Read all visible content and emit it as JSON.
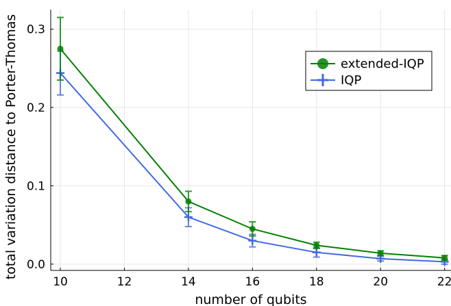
{
  "chart_data": {
    "type": "line",
    "xlabel": "number of qubits",
    "ylabel": "total variation distance to Porter-Thomas",
    "xlim": [
      9.7,
      22.2
    ],
    "ylim": [
      -0.008,
      0.325
    ],
    "xticks": [
      10,
      12,
      14,
      16,
      18,
      20,
      22
    ],
    "xtick_labels": [
      "10",
      "12",
      "14",
      "16",
      "18",
      "20",
      "22"
    ],
    "yticks": [
      0.0,
      0.1,
      0.2,
      0.3
    ],
    "ytick_labels": [
      "0.0",
      "0.1",
      "0.2",
      "0.3"
    ],
    "grid": true,
    "legend_position": "top-right",
    "series": [
      {
        "name": "extended-IQP",
        "color": "#008000",
        "marker": "circle",
        "x": [
          10,
          14,
          16,
          18,
          20,
          22
        ],
        "y": [
          0.275,
          0.08,
          0.045,
          0.024,
          0.014,
          0.008
        ],
        "err": [
          0.04,
          0.013,
          0.009,
          0.004,
          0.003,
          0.003
        ]
      },
      {
        "name": "IQP",
        "color": "#4169E1",
        "marker": "plus",
        "x": [
          10,
          14,
          16,
          18,
          20,
          22
        ],
        "y": [
          0.244,
          0.06,
          0.03,
          0.015,
          0.007,
          0.003
        ],
        "err": [
          0.028,
          0.012,
          0.008,
          0.006,
          0.003,
          0.003
        ]
      }
    ]
  }
}
